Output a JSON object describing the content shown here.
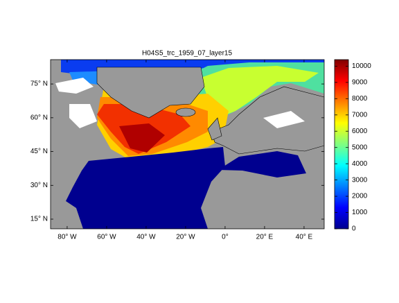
{
  "map": {
    "title": "H04S5_trc_1959_07_layer15",
    "lonlim": [
      -88.4,
      50.2
    ],
    "latlim": [
      10.7,
      85.8
    ],
    "lon_ticks": [
      {
        "value": -80,
        "label": "80° W"
      },
      {
        "value": -60,
        "label": "60° W"
      },
      {
        "value": -40,
        "label": "40° W"
      },
      {
        "value": -20,
        "label": "20° W"
      },
      {
        "value": 0,
        "label": "0°"
      },
      {
        "value": 20,
        "label": "20° E"
      },
      {
        "value": 40,
        "label": "40° E"
      }
    ],
    "lat_ticks": [
      {
        "value": 75,
        "label": "75° N"
      },
      {
        "value": 60,
        "label": "60° N"
      },
      {
        "value": 45,
        "label": "45° N"
      },
      {
        "value": 30,
        "label": "30° N"
      },
      {
        "value": 15,
        "label": "15° N"
      }
    ],
    "colorbar": {
      "clim": [
        0,
        10400
      ],
      "ticks": [
        0,
        1000,
        2000,
        3000,
        4000,
        5000,
        6000,
        7000,
        8000,
        9000,
        10000
      ]
    }
  }
}
